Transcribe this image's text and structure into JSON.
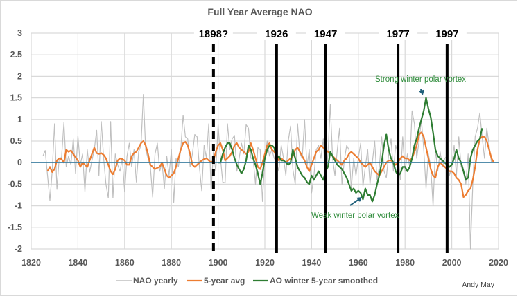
{
  "chart_data": {
    "type": "line",
    "title": "Full Year Average NAO",
    "xlabel": "",
    "ylabel": "",
    "xlim": [
      1820,
      2020
    ],
    "ylim": [
      -2,
      3
    ],
    "x_ticks": [
      "1820",
      "1840",
      "1860",
      "1880",
      "1900",
      "1920",
      "1940",
      "1960",
      "1980",
      "2000",
      "2020"
    ],
    "y_ticks": [
      "3",
      "2.5",
      "2",
      "1.5",
      "1",
      "0.5",
      "0",
      "-0.5",
      "-1",
      "-1.5",
      "-2"
    ],
    "grid": true,
    "legend_position": "bottom",
    "zero_line_color": "#3b7ea1",
    "series": [
      {
        "name": "NAO yearly",
        "color": "#bfbfbf",
        "start_year": 1825,
        "values": [
          0.15,
          0.28,
          -0.3,
          -0.88,
          -0.2,
          0.9,
          -0.62,
          0.1,
          0.12,
          0.93,
          -0.1,
          0.15,
          -0.05,
          0.55,
          -0.25,
          0.62,
          -0.05,
          0.2,
          -0.68,
          0.3,
          -0.22,
          0.05,
          0.3,
          0.75,
          -0.3,
          0.95,
          0.1,
          -0.5,
          -0.82,
          0.95,
          -0.82,
          0.2,
          -0.05,
          -0.2,
          0.1,
          -0.68,
          0.15,
          0.45,
          -0.1,
          0.3,
          -0.45,
          0.25,
          0.4,
          1.58,
          0.3,
          0.1,
          -0.1,
          -0.8,
          0.2,
          0.45,
          -0.2,
          0.0,
          -0.6,
          0.15,
          -0.3,
          0.3,
          -0.92,
          0.1,
          -0.1,
          0.3,
          1.1,
          0.6,
          0.55,
          -0.1,
          0.2,
          0.65,
          0.6,
          -0.1,
          -0.65,
          0.4,
          0.1,
          0.9,
          -0.65,
          0.25,
          -0.2,
          0.88,
          0.1,
          -0.45,
          -0.47,
          0.9,
          0.3,
          0.55,
          0.63,
          -0.2,
          0.1,
          0.45,
          0.2,
          0.88,
          0.8,
          0.1,
          0.1,
          -0.5,
          0.35,
          0.3,
          -0.9,
          0.15,
          0.5,
          0.15,
          0.3,
          0.1,
          0.0,
          -0.2,
          0.4,
          0.1,
          -0.3,
          0.5,
          0.85,
          -0.15,
          -0.5,
          0.9,
          0.2,
          0.1,
          1.0,
          -0.1,
          0.3,
          -0.7,
          -0.3,
          0.3,
          0.4,
          0.1,
          0.55,
          -0.45,
          0.2,
          1.35,
          0.1,
          -0.3,
          0.3,
          0.8,
          -0.5,
          0.05,
          0.4,
          0.3,
          -0.6,
          0.1,
          -0.3,
          0.1,
          0.45,
          -0.55,
          -0.1,
          0.3,
          -0.5,
          0.0,
          0.5,
          -0.4,
          -0.1,
          0.6,
          -0.2,
          -0.35,
          0.2,
          0.55,
          -0.2,
          0.4,
          0.2,
          -0.4,
          0.6,
          -0.2,
          0.2,
          -0.1,
          1.2,
          0.9,
          0.1,
          0.5,
          1.0,
          0.3,
          -0.6,
          0.2,
          -0.1,
          -1.0,
          0.3,
          -0.2,
          0.25,
          -0.1,
          0.1,
          0.15,
          -0.3,
          -0.1,
          0.4,
          -0.3,
          0.6,
          -0.1,
          -0.2,
          -0.5,
          0.2,
          -2.0,
          -0.5,
          0.6,
          0.8,
          1.15,
          0.6,
          0.1,
          0.8,
          0.4,
          0.0
        ]
      },
      {
        "name": "5-year avg",
        "color": "#ed7d31",
        "start_year": 1827,
        "values": [
          -0.2,
          -0.1,
          -0.22,
          -0.15,
          0.05,
          0.1,
          0.08,
          0.0,
          0.3,
          0.25,
          0.28,
          0.2,
          0.12,
          0.05,
          -0.1,
          0.0,
          -0.05,
          -0.1,
          0.05,
          0.2,
          0.35,
          0.22,
          0.2,
          0.22,
          0.18,
          0.1,
          -0.05,
          -0.2,
          -0.27,
          -0.15,
          0.05,
          0.1,
          0.08,
          0.05,
          -0.05,
          -0.05,
          0.15,
          0.22,
          0.25,
          0.35,
          0.45,
          0.5,
          0.4,
          0.2,
          -0.05,
          -0.1,
          -0.15,
          -0.12,
          -0.1,
          0.0,
          -0.15,
          -0.3,
          -0.35,
          -0.3,
          -0.25,
          -0.1,
          0.1,
          0.3,
          0.45,
          0.48,
          0.4,
          0.2,
          -0.05,
          -0.1,
          -0.05,
          0.0,
          0.05,
          0.08,
          0.1,
          0.05,
          0.0,
          0.05,
          0.25,
          0.4,
          0.45,
          0.3,
          0.05,
          0.1,
          0.15,
          0.25,
          0.4,
          0.45,
          0.35,
          0.3,
          0.25,
          0.2,
          0.25,
          0.45,
          0.3,
          0.1,
          -0.1,
          -0.15,
          0.0,
          0.2,
          0.4,
          0.45,
          0.3,
          0.25,
          0.15,
          0.05,
          0.1,
          0.05,
          0.0,
          0.05,
          0.1,
          0.15,
          0.3,
          0.35,
          0.25,
          0.15,
          0.05,
          -0.1,
          -0.2,
          -0.05,
          0.1,
          0.25,
          0.3,
          0.4,
          0.35,
          0.3,
          0.25,
          0.2,
          0.15,
          0.1,
          0.05,
          0.0,
          -0.05,
          0.05,
          0.1,
          0.2,
          0.25,
          0.2,
          0.15,
          0.1,
          0.0,
          -0.05,
          -0.1,
          -0.05,
          0.0,
          -0.1,
          -0.2,
          -0.25,
          -0.3,
          -0.2,
          -0.1,
          0.0,
          0.05,
          0.05,
          0.0,
          -0.05,
          0.0,
          0.1,
          0.15,
          0.1,
          0.1,
          0.05,
          0.1,
          0.25,
          0.4,
          0.65,
          0.7,
          0.6,
          0.35,
          0.1,
          -0.15,
          -0.3,
          -0.35,
          -0.1,
          0.0,
          -0.05,
          -0.1,
          -0.15,
          -0.2,
          -0.2,
          -0.25,
          -0.35,
          -0.4,
          -0.5,
          -0.8,
          -0.75,
          -0.65,
          -0.6,
          -0.4,
          -0.1,
          0.3,
          0.55,
          0.6,
          0.6,
          0.5,
          0.3,
          0.1,
          0.0
        ]
      },
      {
        "name": "AO winter 5-year smoothed",
        "color": "#2e7d32",
        "start_year": 1900,
        "values": [
          0.0,
          0.0,
          0.2,
          0.35,
          0.45,
          0.45,
          0.3,
          0.1,
          -0.05,
          -0.15,
          -0.25,
          -0.15,
          0.05,
          0.4,
          0.3,
          0.1,
          -0.05,
          -0.25,
          -0.5,
          -0.25,
          0.1,
          0.3,
          0.4,
          0.4,
          0.35,
          0.1,
          0.15,
          0.05,
          0.05,
          0.0,
          -0.05,
          0.0,
          0.3,
          0.1,
          -0.1,
          -0.2,
          -0.3,
          -0.35,
          -0.45,
          -0.5,
          -0.3,
          -0.4,
          -0.3,
          -0.2,
          -0.3,
          -0.4,
          -0.2,
          -0.1,
          0.25,
          0.15,
          0.05,
          -0.05,
          -0.1,
          -0.15,
          -0.25,
          -0.35,
          -0.5,
          -0.65,
          -0.6,
          -0.7,
          -0.65,
          -0.7,
          -0.85,
          -0.6,
          -0.75,
          -0.75,
          -0.9,
          -0.75,
          -0.5,
          -0.3,
          0.0,
          0.4,
          0.65,
          0.3,
          0.1,
          0.0,
          -0.2,
          -0.3,
          -0.25,
          -0.1,
          -0.1,
          -0.2,
          -0.1,
          0.1,
          0.4,
          0.55,
          0.8,
          1.0,
          1.2,
          1.5,
          1.25,
          1.05,
          0.7,
          0.3,
          0.15,
          0.1,
          0.05,
          0.0,
          -0.05,
          -0.1,
          -0.05,
          0.1,
          0.3,
          0.1,
          0.0,
          -0.2,
          -0.4,
          -0.35,
          0.1,
          0.3,
          0.4,
          0.5,
          0.55,
          0.8
        ]
      }
    ],
    "vertical_markers": [
      {
        "year": 1898,
        "label": "1898?",
        "style": "dashed"
      },
      {
        "year": 1925,
        "label": "1926",
        "style": "solid"
      },
      {
        "year": 1946,
        "label": "1947",
        "style": "solid"
      },
      {
        "year": 1977,
        "label": "1977",
        "style": "solid"
      },
      {
        "year": 1998,
        "label": "1997",
        "style": "solid"
      }
    ],
    "annotations": [
      {
        "text": "Strong winter polar vortex",
        "arrow_to_year": 1990,
        "arrow_to_value": 1.5
      },
      {
        "text": "Weak winter polar vortex",
        "arrow_to_year": 1966,
        "arrow_to_value": -0.85
      }
    ],
    "credit": "Andy May"
  }
}
